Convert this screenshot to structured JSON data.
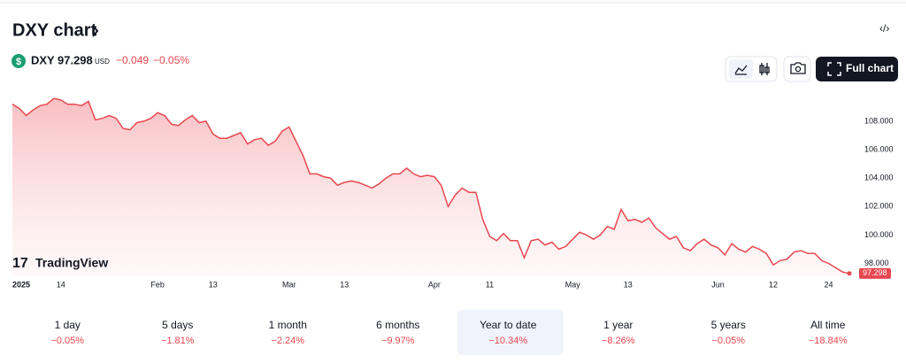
{
  "header": {
    "title": "DXY chart",
    "symbol": "DXY",
    "price": "97.298",
    "currency": "USD",
    "change": "−0.049",
    "change_percent": "−0.05%",
    "full_chart": "Full chart"
  },
  "logo": "TradingView",
  "ranges": [
    {
      "label": "1 day",
      "change": "−0.05%"
    },
    {
      "label": "5 days",
      "change": "−1.81%"
    },
    {
      "label": "1 month",
      "change": "−2.24%"
    },
    {
      "label": "6 months",
      "change": "−9.97%"
    },
    {
      "label": "Year to date",
      "change": "−10.34%"
    },
    {
      "label": "1 year",
      "change": "−8.26%"
    },
    {
      "label": "5 years",
      "change": "−0.05%"
    },
    {
      "label": "All time",
      "change": "−18.84%"
    }
  ],
  "chart_data": {
    "type": "area",
    "color": "#e8474f",
    "categories": [
      "2025",
      null,
      null,
      null,
      null,
      null,
      null,
      "14",
      null,
      null,
      null,
      null,
      null,
      null,
      null,
      null,
      null,
      null,
      null,
      null,
      null,
      "Feb",
      null,
      null,
      null,
      null,
      null,
      null,
      null,
      "13",
      null,
      null,
      null,
      null,
      null,
      null,
      null,
      null,
      null,
      null,
      "Mar",
      null,
      null,
      null,
      null,
      null,
      null,
      null,
      "13",
      null,
      null,
      null,
      null,
      null,
      null,
      null,
      null,
      null,
      null,
      null,
      null,
      "Apr",
      null,
      null,
      null,
      null,
      null,
      null,
      null,
      "11",
      null,
      null,
      null,
      null,
      null,
      null,
      null,
      null,
      null,
      null,
      null,
      "May",
      null,
      null,
      null,
      null,
      null,
      null,
      null,
      "13",
      null,
      null,
      null,
      null,
      null,
      null,
      null,
      null,
      null,
      null,
      null,
      null,
      "Jun",
      null,
      null,
      null,
      null,
      null,
      null,
      null,
      "12",
      null,
      null,
      null,
      null,
      null,
      null,
      null,
      "24",
      null,
      null,
      null
    ],
    "values": [
      109.2,
      108.9,
      108.4,
      108.8,
      109.1,
      109.2,
      109.6,
      109.5,
      109.2,
      109.2,
      109.1,
      109.4,
      108.1,
      108.2,
      108.4,
      108.2,
      107.5,
      107.4,
      107.9,
      108.0,
      108.2,
      108.6,
      108.4,
      107.8,
      107.7,
      108.1,
      108.4,
      107.9,
      108.0,
      107.1,
      106.8,
      106.8,
      107.0,
      107.2,
      106.4,
      106.7,
      106.8,
      106.3,
      106.6,
      107.3,
      107.6,
      106.6,
      105.6,
      104.3,
      104.3,
      104.1,
      104.0,
      103.5,
      103.7,
      103.8,
      103.7,
      103.5,
      103.3,
      103.6,
      104.0,
      104.3,
      104.3,
      104.7,
      104.3,
      104.1,
      104.2,
      104.1,
      103.5,
      102.0,
      102.8,
      103.3,
      103.0,
      103.0,
      101.1,
      99.9,
      99.6,
      100.1,
      99.6,
      99.6,
      98.4,
      99.6,
      99.7,
      99.3,
      99.5,
      99.0,
      99.2,
      99.7,
      100.2,
      100.0,
      99.7,
      100.0,
      100.6,
      100.4,
      101.8,
      101.0,
      101.1,
      100.9,
      101.2,
      100.5,
      100.1,
      99.7,
      99.9,
      99.1,
      98.9,
      99.4,
      99.7,
      99.3,
      99.1,
      98.6,
      99.4,
      99.0,
      98.8,
      99.2,
      99.0,
      98.7,
      97.9,
      98.2,
      98.3,
      98.8,
      98.9,
      98.7,
      98.7,
      98.2,
      98.0,
      97.7,
      97.4,
      97.298
    ],
    "ylim": [
      97.1,
      110.3
    ],
    "yticks": [
      {
        "value": 98,
        "label": "98.000"
      },
      {
        "value": 100,
        "label": "100.000"
      },
      {
        "value": 102,
        "label": "102.000"
      },
      {
        "value": 104,
        "label": "104.000"
      },
      {
        "value": 106,
        "label": "106.000"
      },
      {
        "value": 108,
        "label": "108.000"
      }
    ],
    "grid": false
  }
}
